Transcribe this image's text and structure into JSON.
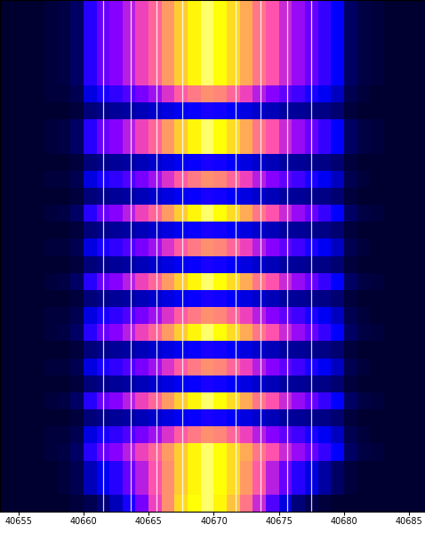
{
  "chart_data": {
    "type": "heatmap",
    "xlim": [
      40653.6,
      40686.2
    ],
    "xticks": [
      40655,
      40660,
      40665,
      40670,
      40675,
      40680,
      40685
    ],
    "ylim": [
      30,
      0
    ],
    "yticks": [],
    "tick_labels": "x",
    "grid": false,
    "x_edges": [
      40653,
      40654,
      40655,
      40656,
      40657,
      40658,
      40659,
      40660,
      40661,
      40662,
      40663,
      40664,
      40665,
      40666,
      40667,
      40668,
      40669,
      40670,
      40671,
      40672,
      40673,
      40674,
      40675,
      40676,
      40677,
      40678,
      40679,
      40680,
      40681,
      40682,
      40683,
      40684,
      40685,
      40686,
      40687
    ],
    "color_range": [
      0,
      100
    ],
    "carriers": [
      40661.5,
      40663.6,
      40665.6,
      40667.6,
      40671.7,
      40673.6,
      40675.6,
      40677.5
    ],
    "cells": [
      [
        5,
        5,
        5,
        5,
        6,
        7,
        10,
        30,
        38,
        42,
        48,
        55,
        62,
        72,
        82,
        90,
        95,
        92,
        85,
        75,
        65,
        58,
        50,
        44,
        38,
        32,
        25,
        10,
        7,
        6,
        5,
        5,
        5,
        5
      ],
      [
        5,
        5,
        5,
        5,
        6,
        7,
        10,
        30,
        38,
        42,
        48,
        55,
        62,
        72,
        82,
        90,
        95,
        92,
        85,
        75,
        65,
        58,
        50,
        44,
        38,
        32,
        25,
        10,
        7,
        6,
        5,
        5,
        5,
        5
      ],
      [
        5,
        5,
        5,
        5,
        6,
        7,
        10,
        30,
        38,
        42,
        48,
        55,
        62,
        72,
        82,
        90,
        95,
        92,
        85,
        75,
        65,
        58,
        50,
        44,
        38,
        32,
        25,
        10,
        7,
        6,
        5,
        5,
        5,
        5
      ],
      [
        5,
        5,
        5,
        5,
        6,
        7,
        10,
        30,
        38,
        42,
        48,
        55,
        62,
        72,
        82,
        90,
        95,
        92,
        85,
        75,
        65,
        58,
        50,
        44,
        38,
        32,
        25,
        10,
        7,
        6,
        5,
        5,
        5,
        5
      ],
      [
        5,
        5,
        5,
        5,
        6,
        7,
        10,
        30,
        38,
        42,
        48,
        55,
        62,
        72,
        82,
        90,
        95,
        92,
        85,
        75,
        65,
        58,
        50,
        44,
        38,
        32,
        25,
        10,
        7,
        6,
        5,
        5,
        5,
        5
      ],
      [
        5,
        5,
        5,
        5,
        6,
        6,
        8,
        22,
        28,
        31,
        35,
        40,
        45,
        52,
        60,
        66,
        70,
        68,
        62,
        55,
        48,
        42,
        37,
        33,
        28,
        24,
        19,
        8,
        6,
        5,
        5,
        5,
        5,
        5
      ],
      [
        5,
        5,
        5,
        5,
        5,
        5,
        6,
        12,
        14,
        15,
        16,
        18,
        20,
        22,
        24,
        26,
        28,
        27,
        25,
        22,
        20,
        18,
        16,
        15,
        14,
        13,
        11,
        6,
        5,
        5,
        5,
        5,
        5,
        5
      ],
      [
        5,
        5,
        5,
        5,
        6,
        7,
        10,
        30,
        38,
        42,
        48,
        55,
        62,
        72,
        82,
        90,
        95,
        92,
        85,
        75,
        65,
        58,
        50,
        44,
        38,
        32,
        25,
        10,
        7,
        6,
        5,
        5,
        5,
        5
      ],
      [
        5,
        5,
        5,
        5,
        6,
        7,
        10,
        30,
        38,
        42,
        48,
        55,
        62,
        72,
        82,
        90,
        95,
        92,
        85,
        75,
        65,
        58,
        50,
        44,
        38,
        32,
        25,
        10,
        7,
        6,
        5,
        5,
        5,
        5
      ],
      [
        5,
        5,
        5,
        5,
        5,
        5,
        6,
        12,
        14,
        15,
        16,
        18,
        20,
        22,
        24,
        26,
        28,
        27,
        25,
        22,
        20,
        18,
        16,
        15,
        14,
        13,
        11,
        6,
        5,
        5,
        5,
        5,
        5,
        5
      ],
      [
        5,
        5,
        5,
        5,
        6,
        6,
        8,
        22,
        28,
        31,
        35,
        40,
        45,
        52,
        60,
        66,
        70,
        68,
        62,
        55,
        48,
        42,
        37,
        33,
        28,
        24,
        19,
        8,
        6,
        5,
        5,
        5,
        5,
        5
      ],
      [
        5,
        5,
        5,
        5,
        5,
        5,
        6,
        12,
        14,
        15,
        16,
        18,
        20,
        22,
        24,
        26,
        28,
        27,
        25,
        22,
        20,
        18,
        16,
        15,
        14,
        13,
        11,
        6,
        5,
        5,
        5,
        5,
        5,
        5
      ],
      [
        5,
        5,
        5,
        5,
        6,
        7,
        10,
        30,
        38,
        42,
        48,
        55,
        62,
        72,
        82,
        90,
        95,
        92,
        85,
        75,
        65,
        58,
        50,
        44,
        38,
        32,
        25,
        10,
        7,
        6,
        5,
        5,
        5,
        5
      ],
      [
        5,
        5,
        5,
        5,
        5,
        5,
        6,
        12,
        14,
        15,
        16,
        18,
        20,
        22,
        24,
        26,
        28,
        27,
        25,
        22,
        20,
        18,
        16,
        15,
        14,
        13,
        11,
        6,
        5,
        5,
        5,
        5,
        5,
        5
      ],
      [
        5,
        5,
        5,
        5,
        6,
        6,
        8,
        22,
        28,
        31,
        35,
        40,
        45,
        52,
        60,
        66,
        70,
        68,
        62,
        55,
        48,
        42,
        37,
        33,
        28,
        24,
        19,
        8,
        6,
        5,
        5,
        5,
        5,
        5
      ],
      [
        5,
        5,
        5,
        5,
        5,
        5,
        6,
        12,
        14,
        15,
        16,
        18,
        20,
        22,
        24,
        26,
        28,
        27,
        25,
        22,
        20,
        18,
        16,
        15,
        14,
        13,
        11,
        6,
        5,
        5,
        5,
        5,
        5,
        5
      ],
      [
        5,
        5,
        5,
        5,
        6,
        7,
        10,
        30,
        38,
        42,
        48,
        55,
        62,
        72,
        82,
        90,
        95,
        92,
        85,
        75,
        65,
        58,
        50,
        44,
        38,
        32,
        25,
        10,
        7,
        6,
        5,
        5,
        5,
        5
      ],
      [
        5,
        5,
        5,
        5,
        5,
        5,
        6,
        12,
        14,
        15,
        16,
        18,
        20,
        22,
        24,
        26,
        28,
        27,
        25,
        22,
        20,
        18,
        16,
        15,
        14,
        13,
        11,
        6,
        5,
        5,
        5,
        5,
        5,
        5
      ],
      [
        5,
        5,
        5,
        5,
        6,
        6,
        8,
        22,
        28,
        31,
        35,
        40,
        45,
        52,
        60,
        66,
        70,
        68,
        62,
        55,
        48,
        42,
        37,
        33,
        28,
        24,
        19,
        8,
        6,
        5,
        5,
        5,
        5,
        5
      ],
      [
        5,
        5,
        5,
        5,
        6,
        7,
        10,
        30,
        38,
        42,
        48,
        55,
        62,
        72,
        82,
        90,
        95,
        92,
        85,
        75,
        65,
        58,
        50,
        44,
        38,
        32,
        25,
        10,
        7,
        6,
        5,
        5,
        5,
        5
      ],
      [
        5,
        5,
        5,
        5,
        5,
        5,
        6,
        12,
        14,
        15,
        16,
        18,
        20,
        22,
        24,
        26,
        28,
        27,
        25,
        22,
        20,
        18,
        16,
        15,
        14,
        13,
        11,
        6,
        5,
        5,
        5,
        5,
        5,
        5
      ],
      [
        5,
        5,
        5,
        5,
        6,
        6,
        8,
        22,
        28,
        31,
        35,
        40,
        45,
        52,
        60,
        66,
        70,
        68,
        62,
        55,
        48,
        42,
        37,
        33,
        28,
        24,
        19,
        8,
        6,
        5,
        5,
        5,
        5,
        5
      ],
      [
        5,
        5,
        5,
        5,
        5,
        5,
        6,
        12,
        14,
        15,
        16,
        18,
        20,
        22,
        24,
        26,
        28,
        27,
        25,
        22,
        20,
        18,
        16,
        15,
        14,
        13,
        11,
        6,
        5,
        5,
        5,
        5,
        5,
        5
      ],
      [
        5,
        5,
        5,
        5,
        6,
        7,
        10,
        30,
        38,
        42,
        48,
        55,
        62,
        72,
        82,
        90,
        95,
        92,
        85,
        75,
        65,
        58,
        50,
        44,
        38,
        32,
        25,
        10,
        7,
        6,
        5,
        5,
        5,
        5
      ],
      [
        5,
        5,
        5,
        5,
        5,
        5,
        6,
        12,
        14,
        15,
        16,
        18,
        20,
        22,
        24,
        26,
        28,
        27,
        25,
        22,
        20,
        18,
        16,
        15,
        14,
        13,
        11,
        6,
        5,
        5,
        5,
        5,
        5,
        5
      ],
      [
        5,
        5,
        5,
        5,
        6,
        6,
        8,
        22,
        28,
        31,
        35,
        40,
        45,
        52,
        60,
        66,
        70,
        68,
        62,
        55,
        48,
        42,
        37,
        33,
        28,
        24,
        19,
        8,
        6,
        5,
        5,
        5,
        5,
        5
      ],
      [
        5,
        5,
        5,
        5,
        6,
        7,
        10,
        30,
        38,
        42,
        48,
        55,
        62,
        72,
        82,
        90,
        95,
        92,
        85,
        75,
        65,
        58,
        50,
        44,
        38,
        32,
        25,
        10,
        7,
        6,
        5,
        5,
        5,
        5
      ],
      [
        5,
        5,
        5,
        5,
        5,
        6,
        8,
        18,
        24,
        30,
        38,
        48,
        58,
        70,
        82,
        90,
        95,
        92,
        85,
        72,
        60,
        48,
        38,
        30,
        22,
        16,
        10,
        6,
        5,
        5,
        5,
        5,
        5,
        5
      ],
      [
        5,
        5,
        5,
        5,
        5,
        6,
        8,
        18,
        24,
        30,
        38,
        48,
        58,
        70,
        82,
        90,
        95,
        92,
        85,
        72,
        60,
        48,
        38,
        30,
        22,
        16,
        10,
        6,
        5,
        5,
        5,
        5,
        5,
        5
      ],
      [
        5,
        5,
        5,
        5,
        5,
        5,
        6,
        8,
        12,
        18,
        28,
        40,
        55,
        70,
        85,
        92,
        95,
        90,
        80,
        65,
        50,
        35,
        22,
        12,
        8,
        6,
        5,
        5,
        5,
        5,
        5,
        5,
        5,
        5
      ]
    ]
  }
}
